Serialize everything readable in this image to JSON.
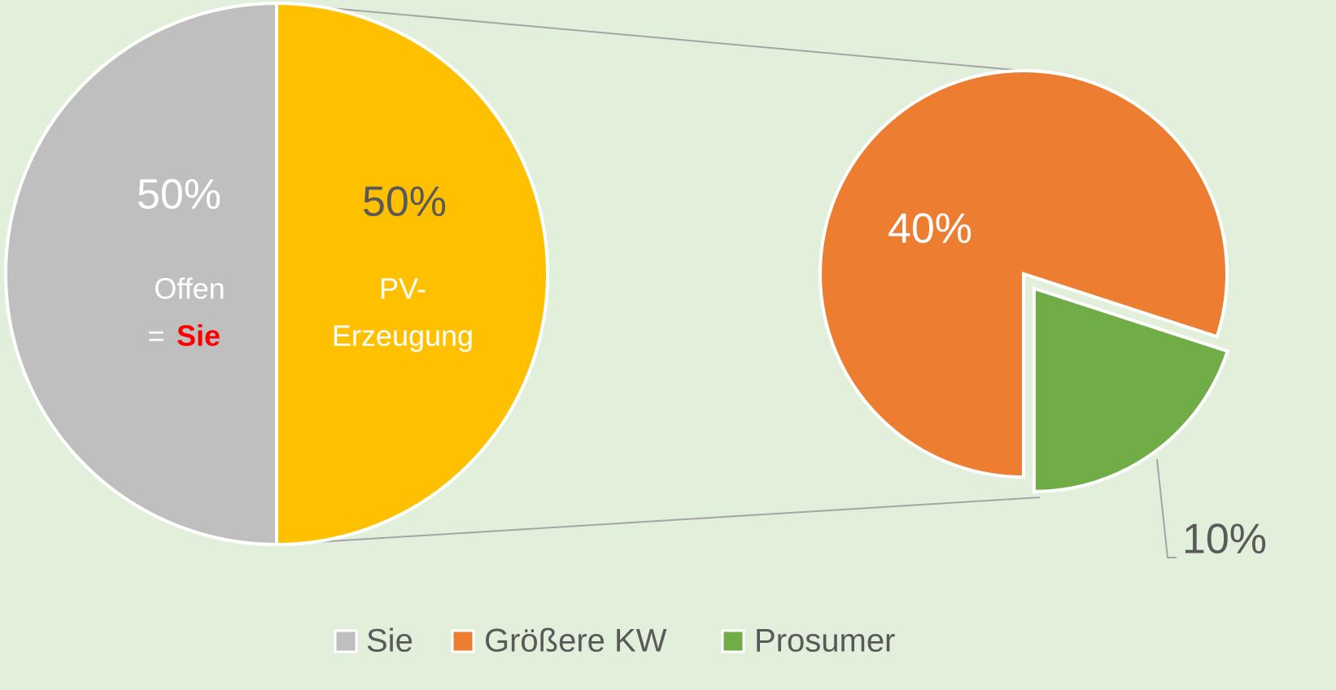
{
  "chart_data": {
    "type": "pie",
    "main": {
      "values": [
        50,
        50
      ],
      "value_labels": [
        "50%",
        "50%"
      ],
      "colors": [
        "#bfbfbf",
        "#ffc000"
      ],
      "label_colors": [
        "#ffffff",
        "#595959"
      ]
    },
    "secondary": {
      "values": [
        40,
        10
      ],
      "value_labels": [
        "40%",
        "10%"
      ],
      "colors": [
        "#ed7d31",
        "#70ad47"
      ],
      "label_colors": [
        "#ffffff",
        "#595959"
      ],
      "explode": [
        false,
        true
      ]
    },
    "annotations": {
      "offen": "Offen",
      "equals": "=",
      "sie": "Sie",
      "pv": "PV-",
      "erzeugung": "Erzeugung"
    },
    "legend": {
      "names": [
        "Sie",
        "Größere KW",
        "Prosumer"
      ],
      "colors": [
        "#bfbfbf",
        "#ed7d31",
        "#70ad47"
      ],
      "position": "bottom"
    }
  }
}
